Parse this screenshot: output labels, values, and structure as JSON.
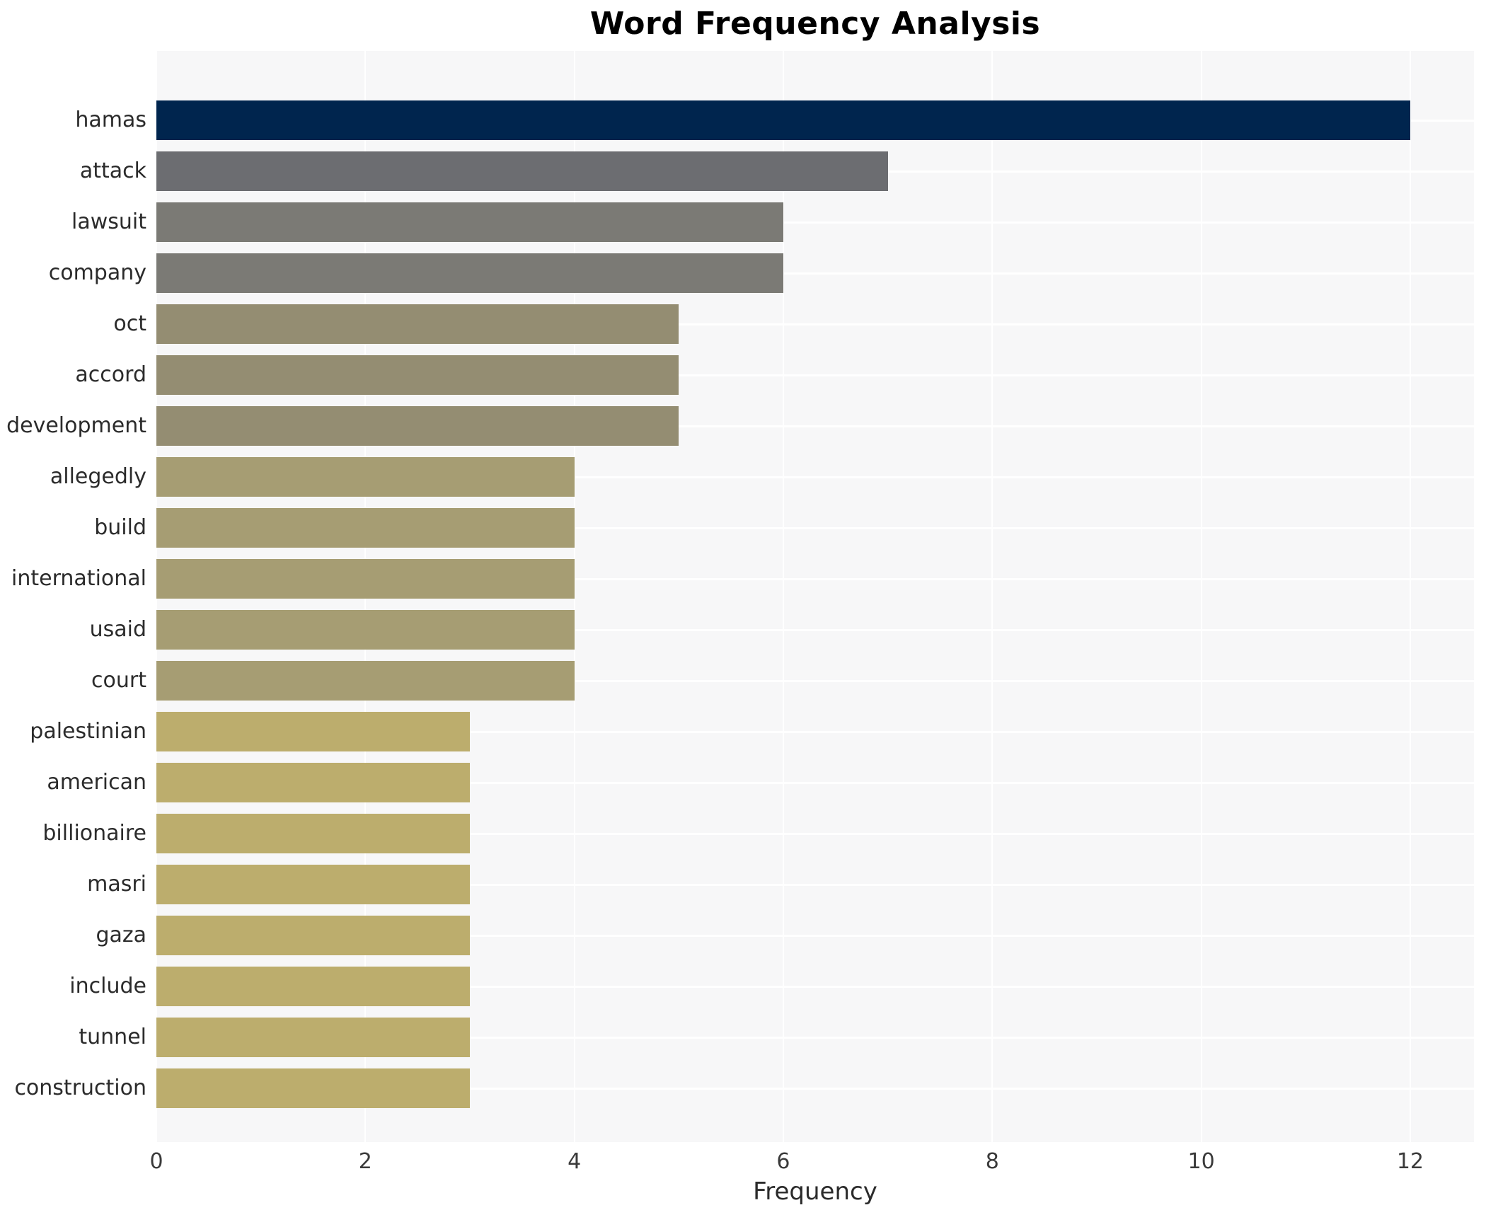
{
  "title": "Word Frequency Analysis",
  "chart_data": {
    "type": "bar",
    "orientation": "horizontal",
    "title": "Word Frequency Analysis",
    "xlabel": "Frequency",
    "ylabel": "",
    "categories": [
      "hamas",
      "attack",
      "lawsuit",
      "company",
      "oct",
      "accord",
      "development",
      "allegedly",
      "build",
      "international",
      "usaid",
      "court",
      "palestinian",
      "american",
      "billionaire",
      "masri",
      "gaza",
      "include",
      "tunnel",
      "construction"
    ],
    "values": [
      12,
      7,
      6,
      6,
      5,
      5,
      5,
      4,
      4,
      4,
      4,
      4,
      3,
      3,
      3,
      3,
      3,
      3,
      3,
      3
    ],
    "bar_colors": [
      "#00254e",
      "#6c6d71",
      "#7b7a75",
      "#7b7a75",
      "#948d72",
      "#948d72",
      "#948d72",
      "#a69d73",
      "#a69d73",
      "#a69d73",
      "#a69d73",
      "#a69d73",
      "#bcad6d",
      "#bcad6d",
      "#bcad6d",
      "#bcad6d",
      "#bcad6d",
      "#bcad6d",
      "#bcad6d",
      "#bcad6d"
    ],
    "xticks": [
      0,
      2,
      4,
      6,
      8,
      10,
      12
    ],
    "xlim": [
      0,
      12.61
    ],
    "grid": true,
    "legend": "none",
    "plot_bg_color": "#f7f7f8",
    "grid_color": "#ffffff",
    "label_color": "#2b2b2b",
    "title_color": "#000000"
  }
}
